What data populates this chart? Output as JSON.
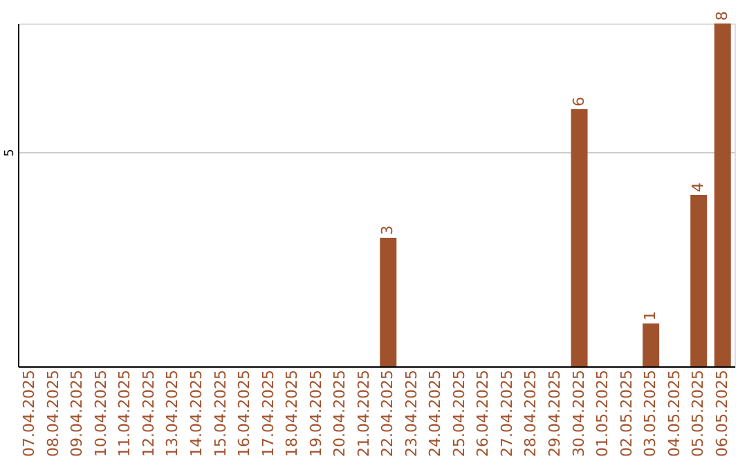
{
  "chart_data": {
    "type": "bar",
    "categories": [
      "07.04.2025",
      "08.04.2025",
      "09.04.2025",
      "10.04.2025",
      "11.04.2025",
      "12.04.2025",
      "13.04.2025",
      "14.04.2025",
      "15.04.2025",
      "16.04.2025",
      "17.04.2025",
      "18.04.2025",
      "19.04.2025",
      "20.04.2025",
      "21.04.2025",
      "22.04.2025",
      "23.04.2025",
      "24.04.2025",
      "25.04.2025",
      "26.04.2025",
      "27.04.2025",
      "28.04.2025",
      "29.04.2025",
      "30.04.2025",
      "01.05.2025",
      "02.05.2025",
      "03.05.2025",
      "04.05.2025",
      "05.05.2025",
      "06.05.2025"
    ],
    "values": [
      null,
      null,
      null,
      null,
      null,
      null,
      null,
      null,
      null,
      null,
      null,
      null,
      null,
      null,
      null,
      3,
      null,
      null,
      null,
      null,
      null,
      null,
      null,
      6,
      null,
      null,
      1,
      null,
      4,
      8
    ],
    "color": "#a0522d",
    "ylim": [
      0,
      8
    ],
    "yticks": [
      5
    ],
    "grid": "y",
    "data_labels": true
  }
}
